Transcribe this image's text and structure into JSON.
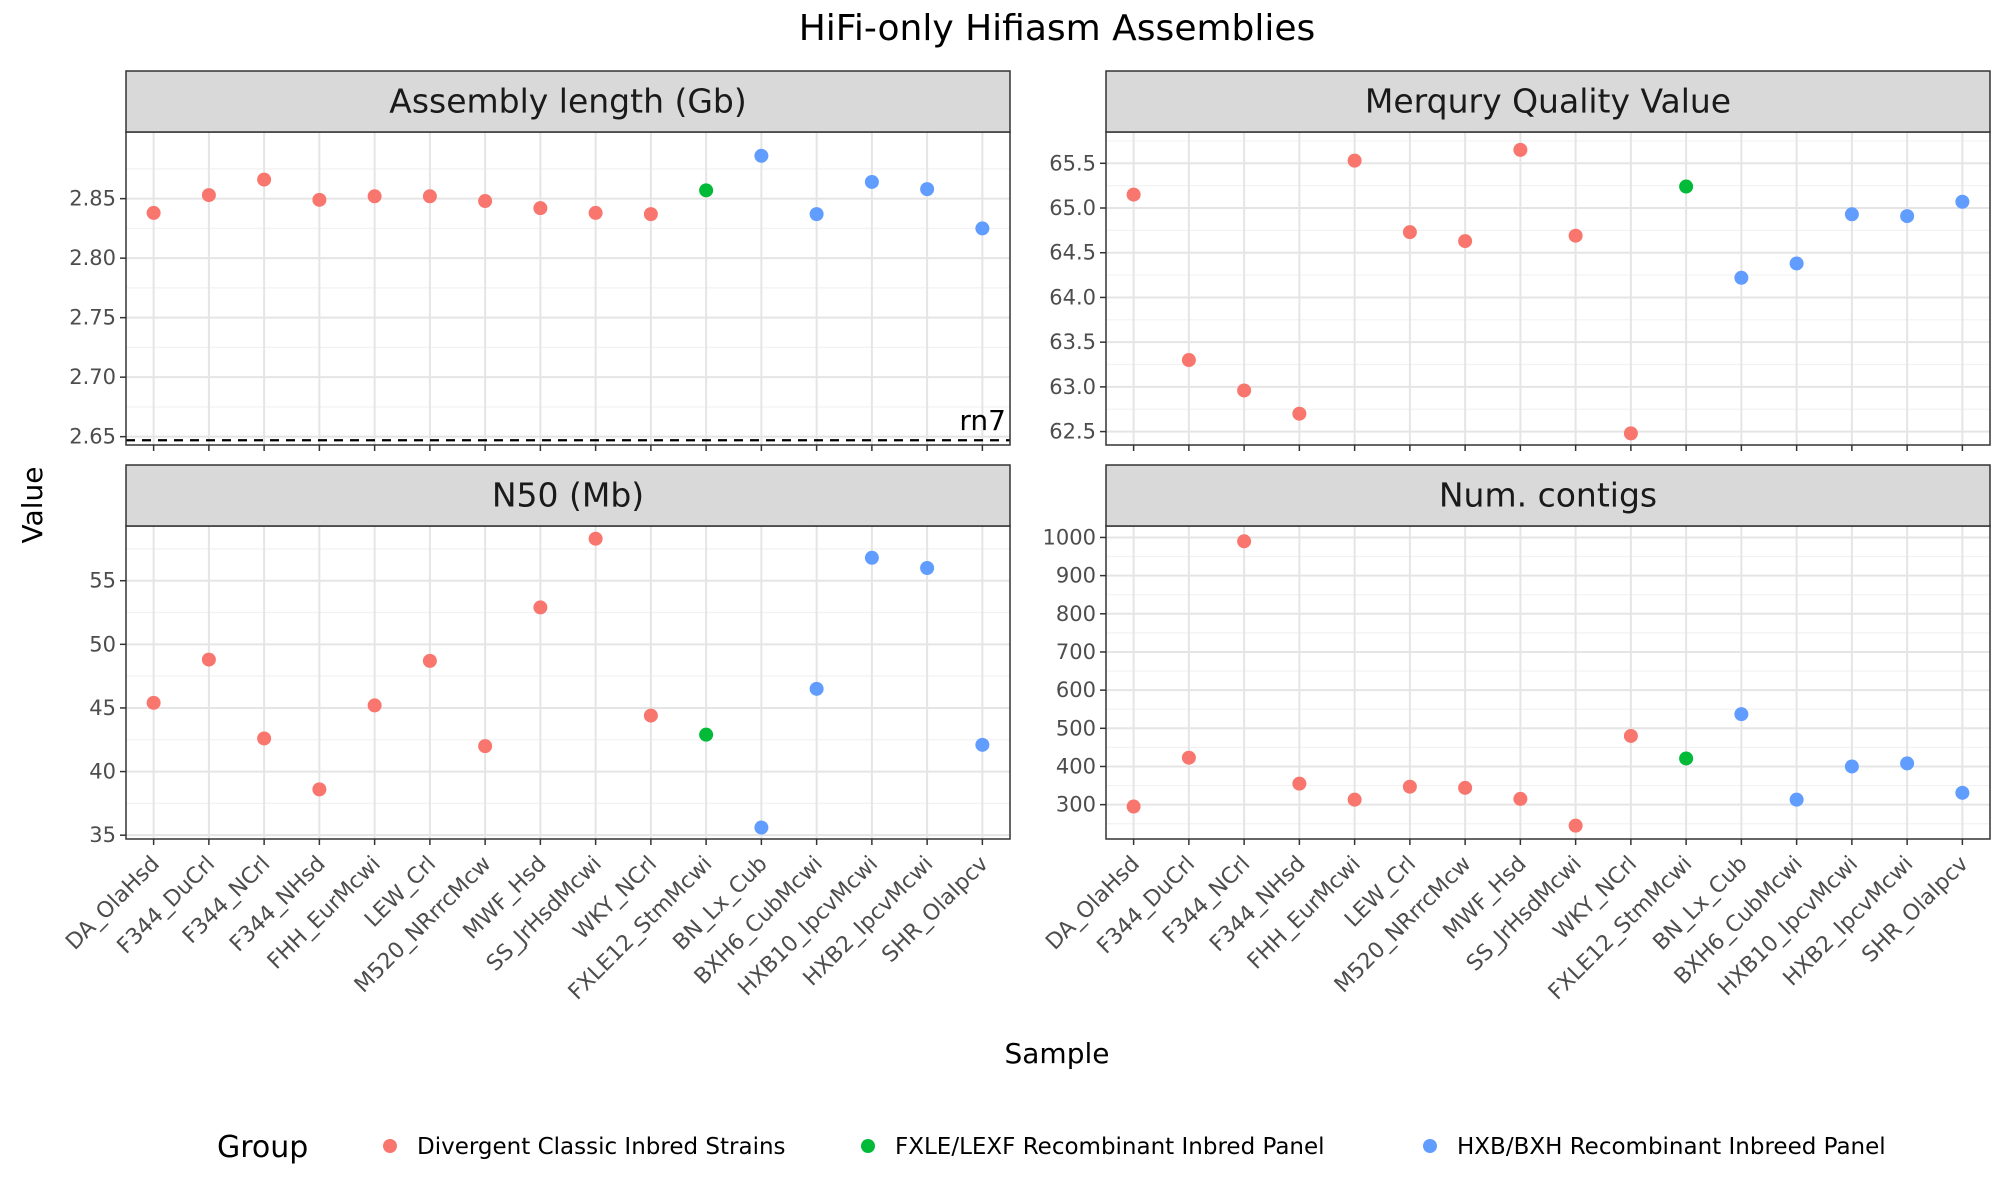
{
  "title": "HiFi-only Hifiasm Assemblies",
  "xlabel": "Sample",
  "ylabel": "Value",
  "legend": {
    "title": "Group",
    "position": "bottom",
    "items": [
      {
        "name": "Divergent Classic Inbred Strains",
        "color": "#F8766D"
      },
      {
        "name": "FXLE/LEXF Recombinant Inbred Panel",
        "color": "#00BA38"
      },
      {
        "name": "HXB/BXH Recombinant Inbreed Panel",
        "color": "#619CFF"
      }
    ]
  },
  "chart_data": {
    "type": "scatter",
    "grid": true,
    "categories": [
      "DA_OlaHsd",
      "F344_DuCrl",
      "F344_NCrl",
      "F344_NHsd",
      "FHH_EurMcwi",
      "LEW_Crl",
      "M520_NRrrcMcw",
      "MWF_Hsd",
      "SS_JrHsdMcwi",
      "WKY_NCrl",
      "FXLE12_StmMcwi",
      "BN_Lx_Cub",
      "BXH6_CubMcwi",
      "HXB10_IpcvMcwi",
      "HXB2_IpcvMcwi",
      "SHR_OlaIpcv"
    ],
    "groups": [
      "Divergent Classic Inbred Strains",
      "Divergent Classic Inbred Strains",
      "Divergent Classic Inbred Strains",
      "Divergent Classic Inbred Strains",
      "Divergent Classic Inbred Strains",
      "Divergent Classic Inbred Strains",
      "Divergent Classic Inbred Strains",
      "Divergent Classic Inbred Strains",
      "Divergent Classic Inbred Strains",
      "Divergent Classic Inbred Strains",
      "FXLE/LEXF Recombinant Inbred Panel",
      "HXB/BXH Recombinant Inbreed Panel",
      "HXB/BXH Recombinant Inbreed Panel",
      "HXB/BXH Recombinant Inbreed Panel",
      "HXB/BXH Recombinant Inbreed Panel",
      "HXB/BXH Recombinant Inbreed Panel"
    ],
    "facets": [
      {
        "name": "Assembly length (Gb)",
        "ylim": [
          2.643,
          2.906
        ],
        "yticks": [
          2.65,
          2.7,
          2.75,
          2.8,
          2.85
        ],
        "tick_labels": [
          "2.65",
          "2.70",
          "2.75",
          "2.80",
          "2.85"
        ],
        "values": [
          2.838,
          2.853,
          2.866,
          2.849,
          2.852,
          2.852,
          2.848,
          2.842,
          2.838,
          2.837,
          2.857,
          2.886,
          2.837,
          2.864,
          2.858,
          2.825
        ],
        "reference_line": {
          "y": 2.647,
          "label": "rn7",
          "style": "dashed"
        }
      },
      {
        "name": "Merqury Quality Value",
        "ylim": [
          62.35,
          65.85
        ],
        "yticks": [
          62.5,
          63.0,
          63.5,
          64.0,
          64.5,
          65.0,
          65.5
        ],
        "tick_labels": [
          "62.5",
          "63.0",
          "63.5",
          "64.0",
          "64.5",
          "65.0",
          "65.5"
        ],
        "values": [
          65.15,
          63.3,
          62.96,
          62.7,
          65.53,
          64.73,
          64.63,
          65.65,
          64.69,
          62.48,
          65.24,
          64.22,
          64.38,
          64.93,
          64.91,
          65.07
        ]
      },
      {
        "name": "N50 (Mb)",
        "ylim": [
          34.7,
          59.3
        ],
        "yticks": [
          35,
          40,
          45,
          50,
          55
        ],
        "tick_labels": [
          "35",
          "40",
          "45",
          "50",
          "55"
        ],
        "values": [
          45.4,
          48.8,
          42.6,
          38.6,
          45.2,
          48.7,
          42.0,
          52.9,
          58.3,
          44.4,
          42.9,
          35.6,
          46.5,
          56.8,
          56.0,
          42.1
        ]
      },
      {
        "name": "Num. contigs",
        "ylim": [
          210,
          1030
        ],
        "yticks": [
          300,
          400,
          500,
          600,
          700,
          800,
          900,
          1000
        ],
        "tick_labels": [
          "300",
          "400",
          "500",
          "600",
          "700",
          "800",
          "900",
          "1000"
        ],
        "values": [
          295,
          423,
          990,
          355,
          313,
          347,
          344,
          315,
          245,
          480,
          421,
          537,
          313,
          400,
          408,
          331
        ]
      }
    ]
  }
}
